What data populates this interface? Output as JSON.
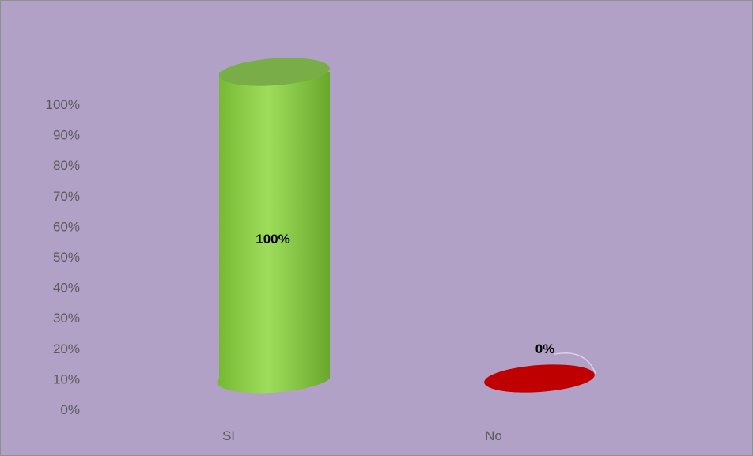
{
  "colors": {
    "background": "#b1a1c7",
    "si_bar": "#92d050",
    "no_bar": "#c00000",
    "axis_text": "#595959"
  },
  "chart_data": {
    "type": "bar",
    "style": "3d-cylinder",
    "categories": [
      "SI",
      "No"
    ],
    "values": [
      100,
      0
    ],
    "data_labels": [
      "100%",
      "0%"
    ],
    "yticks": [
      "0%",
      "10%",
      "20%",
      "30%",
      "40%",
      "50%",
      "60%",
      "70%",
      "80%",
      "90%",
      "100%"
    ],
    "ylim": [
      0,
      100
    ],
    "grid": false,
    "legend": "none"
  }
}
